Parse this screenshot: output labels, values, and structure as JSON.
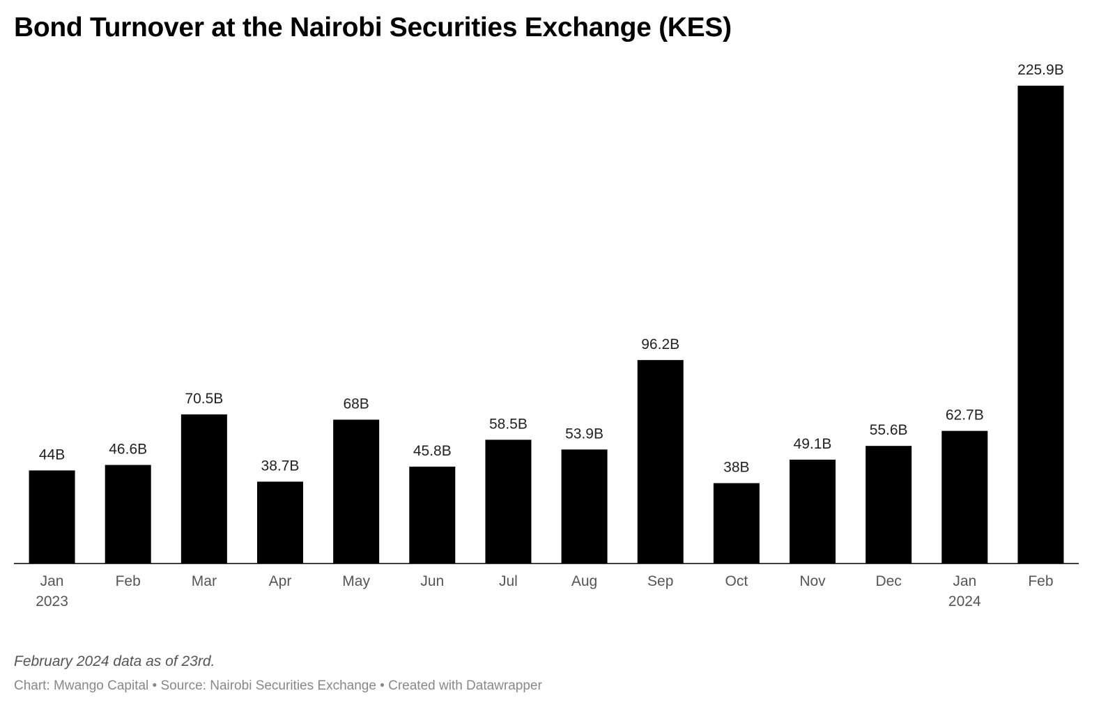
{
  "chart_data": {
    "type": "bar",
    "title": "Bond Turnover at the Nairobi Securities Exchange (KES)",
    "categories": [
      "Jan",
      "Feb",
      "Mar",
      "Apr",
      "May",
      "Jun",
      "Jul",
      "Aug",
      "Sep",
      "Oct",
      "Nov",
      "Dec",
      "Jan",
      "Feb"
    ],
    "year_labels": [
      "2023",
      "",
      "",
      "",
      "",
      "",
      "",
      "",
      "",
      "",
      "",
      "",
      "2024",
      ""
    ],
    "values": [
      44,
      46.6,
      70.5,
      38.7,
      68,
      45.8,
      58.5,
      53.9,
      96.2,
      38,
      49.1,
      55.6,
      62.7,
      225.9
    ],
    "value_labels": [
      "44B",
      "46.6B",
      "70.5B",
      "38.7B",
      "68B",
      "45.8B",
      "58.5B",
      "53.9B",
      "96.2B",
      "38B",
      "49.1B",
      "55.6B",
      "62.7B",
      "225.9B"
    ],
    "ylim": [
      0,
      225.9
    ],
    "grid": false,
    "legend": "none",
    "bar_color": "#000000",
    "baseline_color": "#000000"
  },
  "notes": {
    "footnote": "February 2024 data as of 23rd.",
    "credits": "Chart: Mwango Capital • Source: Nairobi Securities Exchange • Created with Datawrapper"
  }
}
